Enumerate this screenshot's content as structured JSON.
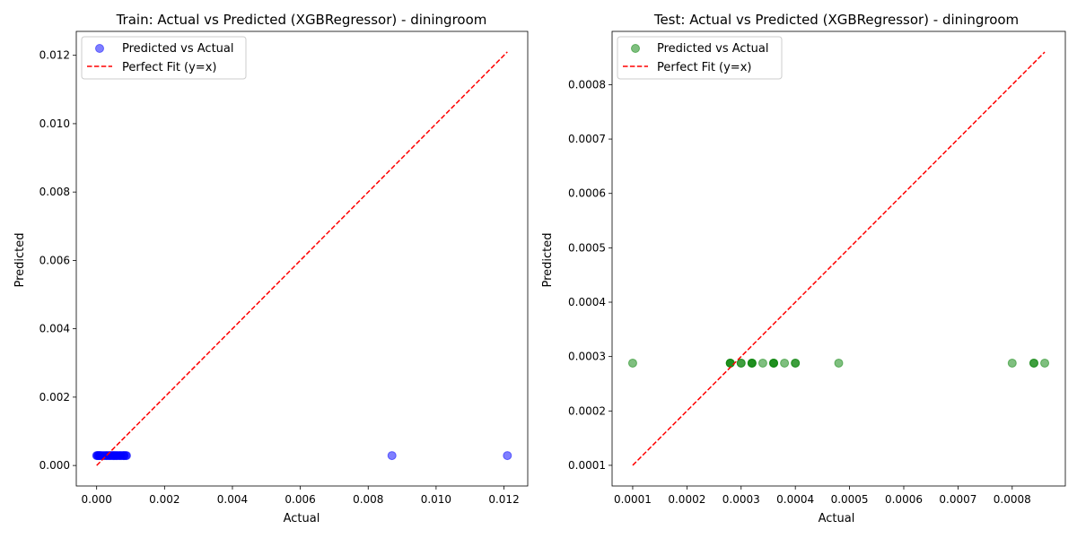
{
  "chart_data": [
    {
      "type": "scatter",
      "title": "Train: Actual vs Predicted (XGBRegressor) - diningroom",
      "xlabel": "Actual",
      "ylabel": "Predicted",
      "xlim": [
        -0.0006,
        0.0127
      ],
      "ylim": [
        -0.0006,
        0.0127
      ],
      "xticks": [
        0,
        0.002,
        0.004,
        0.006,
        0.008,
        0.01,
        0.012
      ],
      "yticks": [
        0,
        0.002,
        0.004,
        0.006,
        0.008,
        0.01,
        0.012
      ],
      "xtick_labels": [
        "0.000",
        "0.002",
        "0.004",
        "0.006",
        "0.008",
        "0.010",
        "0.012"
      ],
      "ytick_labels": [
        "0.000",
        "0.002",
        "0.004",
        "0.006",
        "0.008",
        "0.010",
        "0.012"
      ],
      "legend_position": "upper-left",
      "series": [
        {
          "name": "Predicted vs Actual",
          "color": "#0000ff",
          "x": [
            0.0,
            2e-05,
            4e-05,
            6e-05,
            8e-05,
            0.0001,
            0.00012,
            0.00016,
            0.0002,
            0.00024,
            0.00028,
            0.0003,
            0.00034,
            0.00038,
            0.0004,
            0.00044,
            0.00048,
            0.0005,
            0.00054,
            0.00058,
            0.0006,
            0.00064,
            0.00068,
            0.0007,
            0.00074,
            0.00078,
            0.0008,
            0.00082,
            0.00086,
            0.00088,
            0.0087,
            0.0121
          ],
          "y": [
            0.00029,
            0.00029,
            0.00029,
            0.00029,
            0.00029,
            0.00029,
            0.00029,
            0.00029,
            0.00029,
            0.00029,
            0.00029,
            0.00029,
            0.00029,
            0.00029,
            0.00029,
            0.00029,
            0.00029,
            0.00029,
            0.00029,
            0.00029,
            0.00029,
            0.00029,
            0.00029,
            0.00029,
            0.00029,
            0.00029,
            0.00029,
            0.00029,
            0.00029,
            0.00029,
            0.00029,
            0.00029
          ]
        },
        {
          "name": "Perfect Fit (y=x)",
          "color": "#ff0000",
          "style": "dashed",
          "x": [
            0.0,
            0.0121
          ],
          "y": [
            0.0,
            0.0121
          ]
        }
      ]
    },
    {
      "type": "scatter",
      "title": "Test: Actual vs Predicted (XGBRegressor) - diningroom",
      "xlabel": "Actual",
      "ylabel": "Predicted",
      "xlim": [
        6.2e-05,
        0.000898
      ],
      "ylim": [
        6.2e-05,
        0.000898
      ],
      "xticks": [
        0.0001,
        0.0002,
        0.0003,
        0.0004,
        0.0005,
        0.0006,
        0.0007,
        0.0008
      ],
      "yticks": [
        0.0001,
        0.0002,
        0.0003,
        0.0004,
        0.0005,
        0.0006,
        0.0007,
        0.0008
      ],
      "xtick_labels": [
        "0.0001",
        "0.0002",
        "0.0003",
        "0.0004",
        "0.0005",
        "0.0006",
        "0.0007",
        "0.0008"
      ],
      "ytick_labels": [
        "0.0001",
        "0.0002",
        "0.0003",
        "0.0004",
        "0.0005",
        "0.0006",
        "0.0007",
        "0.0008"
      ],
      "legend_position": "upper-left",
      "series": [
        {
          "name": "Predicted vs Actual",
          "color": "#008000",
          "x": [
            0.0001,
            0.00028,
            0.00028,
            0.00028,
            0.0003,
            0.0003,
            0.00032,
            0.00032,
            0.00032,
            0.00034,
            0.00036,
            0.00036,
            0.00036,
            0.00038,
            0.0004,
            0.0004,
            0.00048,
            0.0008,
            0.00084,
            0.00084,
            0.00086
          ],
          "y": [
            0.000288,
            0.000288,
            0.000288,
            0.000288,
            0.000288,
            0.000288,
            0.000288,
            0.000288,
            0.000288,
            0.000288,
            0.000288,
            0.000288,
            0.000288,
            0.000288,
            0.000288,
            0.000288,
            0.000288,
            0.000288,
            0.000288,
            0.000288,
            0.000288
          ]
        },
        {
          "name": "Perfect Fit (y=x)",
          "color": "#ff0000",
          "style": "dashed",
          "x": [
            0.0001,
            0.00086
          ],
          "y": [
            0.0001,
            0.00086
          ]
        }
      ]
    }
  ]
}
